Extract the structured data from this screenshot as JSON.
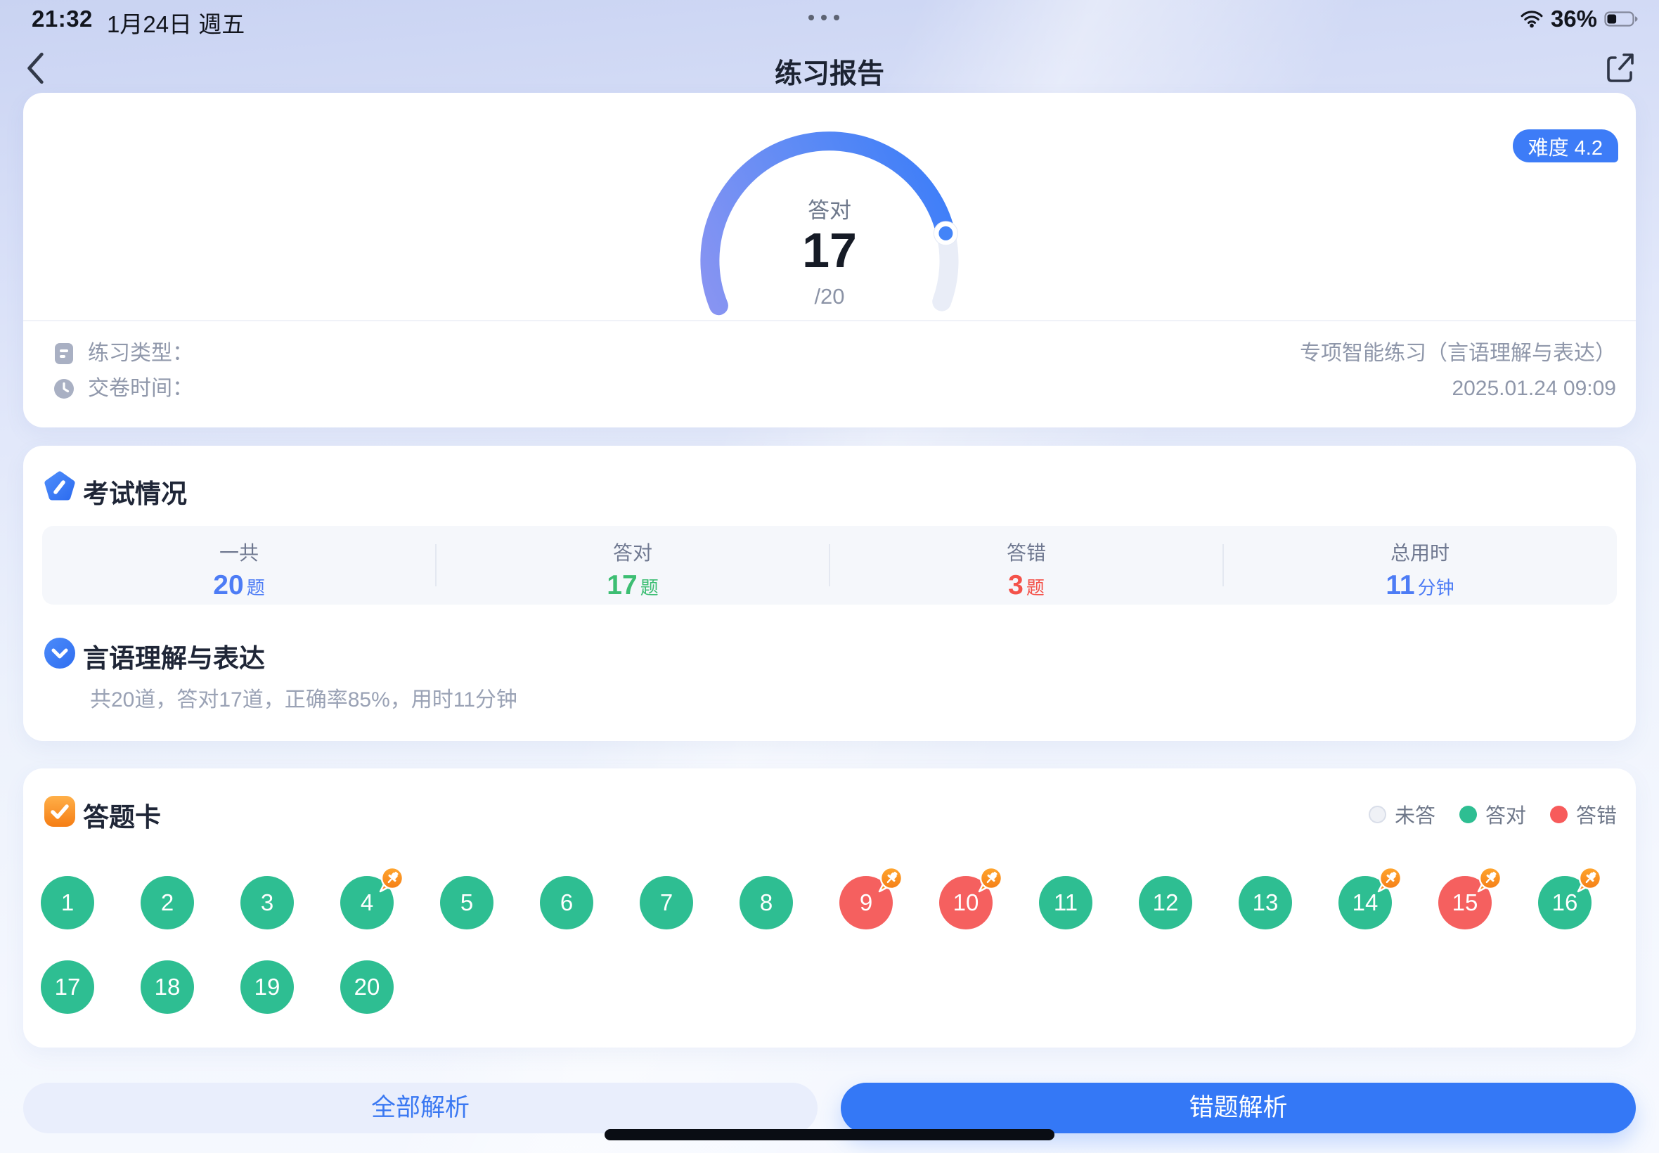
{
  "status_bar": {
    "time": "21:32",
    "date": "1月24日 週五",
    "battery_label": "36%",
    "battery_percent": 36
  },
  "nav": {
    "title": "练习报告"
  },
  "summary_card": {
    "difficulty_badge": "难度 4.2",
    "gauge": {
      "label": "答对",
      "score": "17",
      "total_text": "/20",
      "value": 17,
      "max": 20
    },
    "rows": [
      {
        "icon": "doc-icon",
        "label": "练习类型：",
        "value": "专项智能练习（言语理解与表达）"
      },
      {
        "icon": "clock-icon",
        "label": "交卷时间：",
        "value": "2025.01.24 09:09"
      }
    ]
  },
  "exam_section": {
    "title": "考试情况",
    "stats": [
      {
        "label": "一共",
        "num": "20",
        "unit": "题",
        "color": "#4d7cf5"
      },
      {
        "label": "答对",
        "num": "17",
        "unit": "题",
        "color": "#3dbe73"
      },
      {
        "label": "答错",
        "num": "3",
        "unit": "题",
        "color": "#f4524a"
      },
      {
        "label": "总用时",
        "num": "11",
        "unit": "分钟",
        "color": "#4d7cf5"
      }
    ],
    "subsection": {
      "title": "言语理解与表达",
      "subtitle": "共20道，答对17道，正确率85%，用时11分钟"
    }
  },
  "answer_card": {
    "title": "答题卡",
    "legend": [
      {
        "label": "未答",
        "color": "#eff1f6"
      },
      {
        "label": "答对",
        "color": "#2ebe92"
      },
      {
        "label": "答错",
        "color": "#f75b5b"
      }
    ],
    "questions": [
      {
        "n": 1,
        "status": "correct",
        "starred": false
      },
      {
        "n": 2,
        "status": "correct",
        "starred": false
      },
      {
        "n": 3,
        "status": "correct",
        "starred": false
      },
      {
        "n": 4,
        "status": "correct",
        "starred": true
      },
      {
        "n": 5,
        "status": "correct",
        "starred": false
      },
      {
        "n": 6,
        "status": "correct",
        "starred": false
      },
      {
        "n": 7,
        "status": "correct",
        "starred": false
      },
      {
        "n": 8,
        "status": "correct",
        "starred": false
      },
      {
        "n": 9,
        "status": "wrong",
        "starred": true
      },
      {
        "n": 10,
        "status": "wrong",
        "starred": true
      },
      {
        "n": 11,
        "status": "correct",
        "starred": false
      },
      {
        "n": 12,
        "status": "correct",
        "starred": false
      },
      {
        "n": 13,
        "status": "correct",
        "starred": false
      },
      {
        "n": 14,
        "status": "correct",
        "starred": true
      },
      {
        "n": 15,
        "status": "wrong",
        "starred": true
      },
      {
        "n": 16,
        "status": "correct",
        "starred": true
      },
      {
        "n": 17,
        "status": "correct",
        "starred": false
      },
      {
        "n": 18,
        "status": "correct",
        "starred": false
      },
      {
        "n": 19,
        "status": "correct",
        "starred": false
      },
      {
        "n": 20,
        "status": "correct",
        "starred": false
      }
    ]
  },
  "footer": {
    "all_button": "全部解析",
    "wrong_button": "错题解析"
  },
  "colors": {
    "accent_blue": "#3d7cf7",
    "correct_green": "#2ebe92",
    "wrong_red": "#f5605f",
    "pin_orange": "#f57f17",
    "gauge_track": "#e9edf7"
  }
}
